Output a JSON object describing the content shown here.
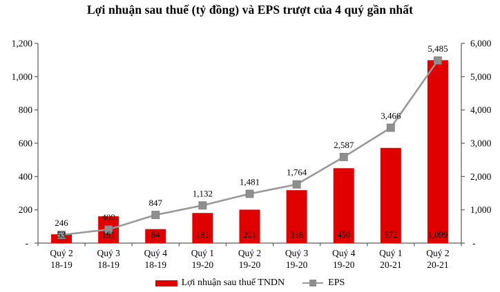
{
  "title": "Lợi nhuận sau thuế (tỷ đồng) và EPS trượt của 4 quý gần nhất",
  "colors": {
    "bar": "#e00000",
    "line": "#999999",
    "marker": "#8f8f8f",
    "marker_edge": "#7a7a7a",
    "axis": "#595959",
    "text": "#000000"
  },
  "chart_data": {
    "type": "bar+line combo, dual axis",
    "title": "Lợi nhuận sau thuế (tỷ đồng) và EPS trượt của 4 quý gần nhất",
    "grid": false,
    "legend_position": "bottom",
    "categories": [
      {
        "line1": "Quý 2",
        "line2": "18-19"
      },
      {
        "line1": "Quý 3",
        "line2": "18-19"
      },
      {
        "line1": "Quý 4",
        "line2": "18-19"
      },
      {
        "line1": "Quý 1",
        "line2": "19-20"
      },
      {
        "line1": "Quý 2",
        "line2": "19-20"
      },
      {
        "line1": "Quý 3",
        "line2": "19-20"
      },
      {
        "line1": "Quý 4",
        "line2": "19-20"
      },
      {
        "line1": "Quý 1",
        "line2": "20-21"
      },
      {
        "line1": "Quý 2",
        "line2": "20-21"
      }
    ],
    "series": [
      {
        "name": "Lợi nhuận sau thuế TNDN",
        "type": "bar",
        "axis": "left",
        "values": [
          53,
          161,
          84,
          181,
          201,
          318,
          450,
          572,
          1099
        ],
        "labels": [
          "53",
          "161",
          "84",
          "181",
          "201",
          "318",
          "450",
          "572",
          "1,099"
        ]
      },
      {
        "name": "EPS",
        "type": "line",
        "axis": "right",
        "marker": "square",
        "values": [
          246,
          409,
          847,
          1132,
          1481,
          1764,
          2587,
          3466,
          5485
        ],
        "labels": [
          "246",
          "409",
          "847",
          "1,132",
          "1,481",
          "1,764",
          "2,587",
          "3,466",
          "5,485"
        ]
      }
    ],
    "left_axis": {
      "min": 0,
      "max": 1200,
      "tick_step": 200,
      "tick_labels": [
        "-",
        "200",
        "400",
        "600",
        "800",
        "1,000",
        "1,200"
      ]
    },
    "right_axis": {
      "min": 0,
      "max": 6000,
      "tick_step": 1000,
      "tick_labels": [
        "-",
        "1,000",
        "2,000",
        "3,000",
        "4,000",
        "5,000",
        "6,000"
      ]
    }
  }
}
